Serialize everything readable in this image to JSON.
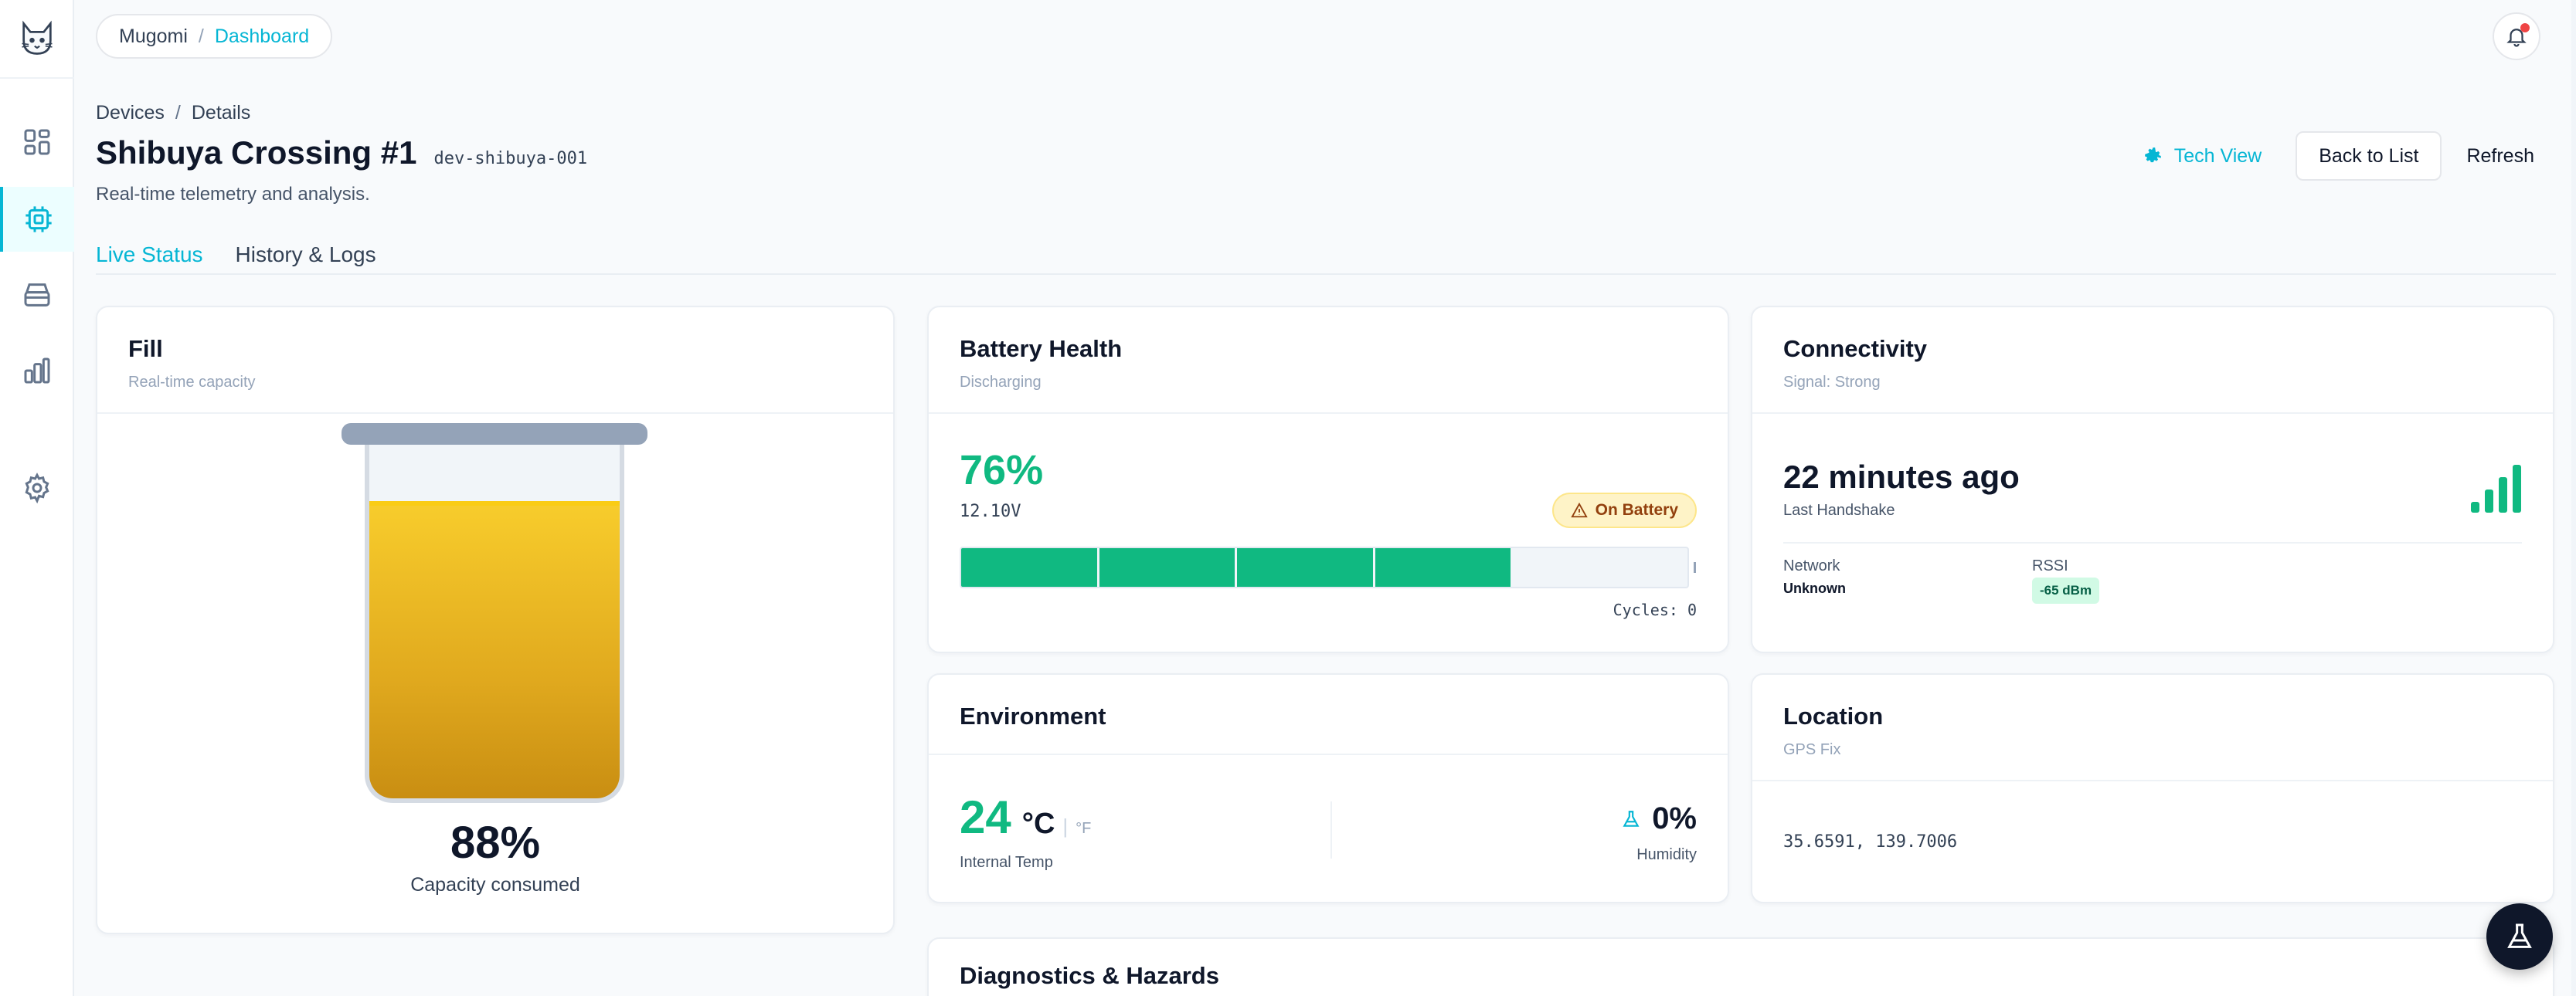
{
  "topbar": {
    "breadcrumb": [
      "Mugomi",
      "Dashboard"
    ],
    "separator": "/"
  },
  "sidebar": {
    "items": [
      {
        "name": "dashboard",
        "icon": "grid-icon",
        "active": false
      },
      {
        "name": "devices",
        "icon": "chip-icon",
        "active": true
      },
      {
        "name": "inventory",
        "icon": "archive-icon",
        "active": false
      },
      {
        "name": "analytics",
        "icon": "bar-chart-icon",
        "active": false
      },
      {
        "name": "settings",
        "icon": "gear-icon",
        "active": false
      }
    ]
  },
  "page": {
    "breadcrumb": [
      "Devices",
      "Details"
    ],
    "separator": "/",
    "title": "Shibuya Crossing #1",
    "device_id": "dev-shibuya-001",
    "subtitle": "Real-time telemetry and analysis.",
    "actions": {
      "tech_view": "Tech View",
      "back": "Back to List",
      "refresh": "Refresh"
    },
    "tabs": [
      {
        "label": "Live Status",
        "active": true
      },
      {
        "label": "History & Logs",
        "active": false
      }
    ]
  },
  "fill": {
    "title": "Fill",
    "subtitle": "Real-time capacity",
    "percent_value": 88,
    "percent": "88%",
    "caption": "Capacity consumed"
  },
  "battery": {
    "title": "Battery Health",
    "subtitle": "Discharging",
    "percent_value": 76,
    "percent": "76%",
    "voltage": "12.10V",
    "status": "On Battery",
    "segments": 4,
    "cycles": "Cycles: 0"
  },
  "connectivity": {
    "title": "Connectivity",
    "subtitle": "Signal: Strong",
    "last_seen": "22 minutes ago",
    "last_seen_label": "Last Handshake",
    "network_label": "Network",
    "network_value": "Unknown",
    "rssi_label": "RSSI",
    "rssi_value": "-65 dBm",
    "signal_bars": 4
  },
  "environment": {
    "title": "Environment",
    "temperature": "24",
    "unit_c": "°C",
    "unit_sep": "|",
    "unit_f": "°F",
    "temperature_label": "Internal Temp",
    "humidity": "0%",
    "humidity_label": "Humidity"
  },
  "location": {
    "title": "Location",
    "subtitle": "GPS Fix",
    "coords": "35.6591, 139.7006"
  },
  "diagnostics": {
    "title": "Diagnostics & Hazards"
  },
  "colors": {
    "accent": "#06b6d4",
    "success": "#10b981",
    "warning_bg": "#fef3c7",
    "liquid": "#f8cd2c"
  }
}
